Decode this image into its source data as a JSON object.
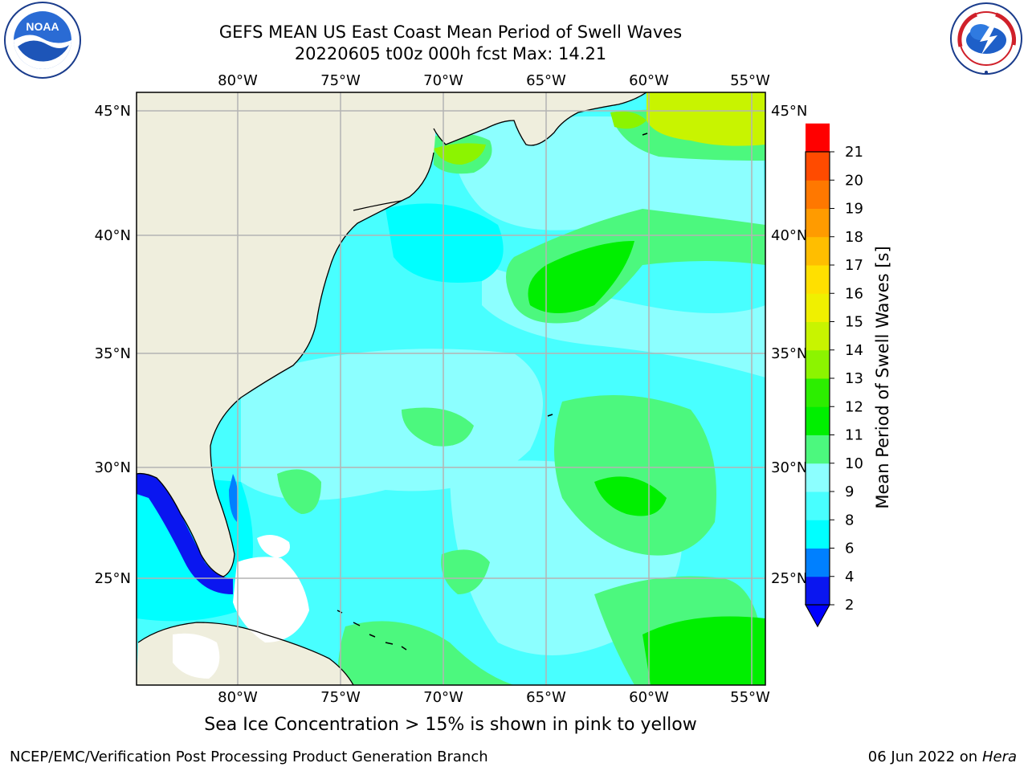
{
  "title": {
    "line1": "GEFS MEAN US East Coast Mean Period of Swell Waves",
    "line2": "20220605 t00z 000h fcst   Max: 14.21"
  },
  "map": {
    "lon_labels": [
      "80°W",
      "75°W",
      "70°W",
      "65°W",
      "60°W",
      "55°W"
    ],
    "lat_labels": [
      "45°N",
      "40°N",
      "35°N",
      "30°N",
      "25°N"
    ],
    "colors": {
      "land": "#efeedd",
      "grid": "#b4b4b4",
      "coast": "#000000"
    }
  },
  "colorbar": {
    "label": "Mean Period of Swell Waves [s]",
    "ticks": [
      "2",
      "4",
      "6",
      "8",
      "9",
      "10",
      "11",
      "12",
      "13",
      "14",
      "15",
      "16",
      "17",
      "18",
      "19",
      "20",
      "21"
    ],
    "colors": [
      "#0a16f0",
      "#0080ff",
      "#00ffff",
      "#48ffff",
      "#8cffff",
      "#4cf87e",
      "#00ef00",
      "#2cee00",
      "#8cf400",
      "#c8f400",
      "#f0f000",
      "#ffe000",
      "#ffbe00",
      "#ff9b00",
      "#ff7800",
      "#ff4b00",
      "#ff0000"
    ],
    "under_color": "#0000ff"
  },
  "logos": {
    "noaa": "NOAA",
    "nws": "NATIONAL WEATHER SERVICE"
  },
  "caption": "Sea Ice Concentration > 15% is shown in pink to yellow",
  "footer": {
    "left": "NCEP/EMC/Verification Post Processing Product Generation Branch",
    "date": "06 Jun 2022 on",
    "machine": "Hera"
  }
}
